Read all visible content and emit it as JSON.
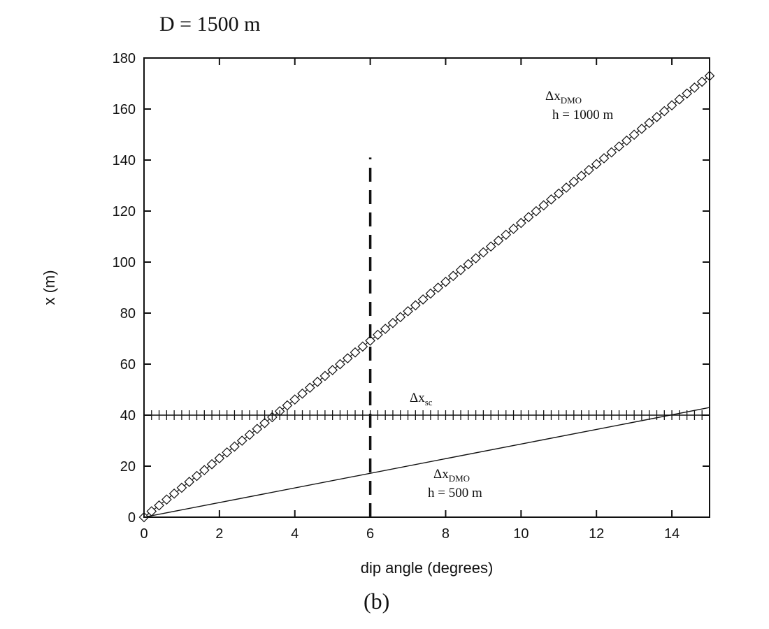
{
  "figure": {
    "title": "D = 1500 m",
    "caption": "(b)"
  },
  "chart_data": {
    "type": "line",
    "xlabel": "dip angle (degrees)",
    "ylabel": "x (m)",
    "xlim": [
      0,
      15
    ],
    "ylim": [
      0,
      180
    ],
    "xticks": [
      0,
      2,
      4,
      6,
      8,
      10,
      12,
      14
    ],
    "yticks": [
      0,
      20,
      40,
      60,
      80,
      100,
      120,
      140,
      160,
      180
    ],
    "grid": false,
    "series": [
      {
        "name": "h = 1000 m",
        "label_main": "Δx",
        "label_sub": "DMO",
        "label_line2": "h = 1000 m",
        "marker": "diamond",
        "x_start": 0,
        "x_end": 15,
        "x_step": 0.2,
        "y_start": 0,
        "y_end": 173
      },
      {
        "name": "h = 500 m",
        "label_main": "Δx",
        "label_sub": "DMO",
        "label_line2": "h = 500 m",
        "marker": "none",
        "x": [
          0,
          15
        ],
        "y": [
          0,
          43
        ]
      },
      {
        "name": "Δx_sc",
        "label_main": "Δx",
        "label_sub": "sc",
        "marker": "plus",
        "x_start": 0,
        "x_end": 15,
        "x_step": 0.2,
        "y_const": 40
      }
    ],
    "vline": {
      "x": 6,
      "y_from": 0,
      "y_to": 141,
      "style": "dashed"
    }
  }
}
